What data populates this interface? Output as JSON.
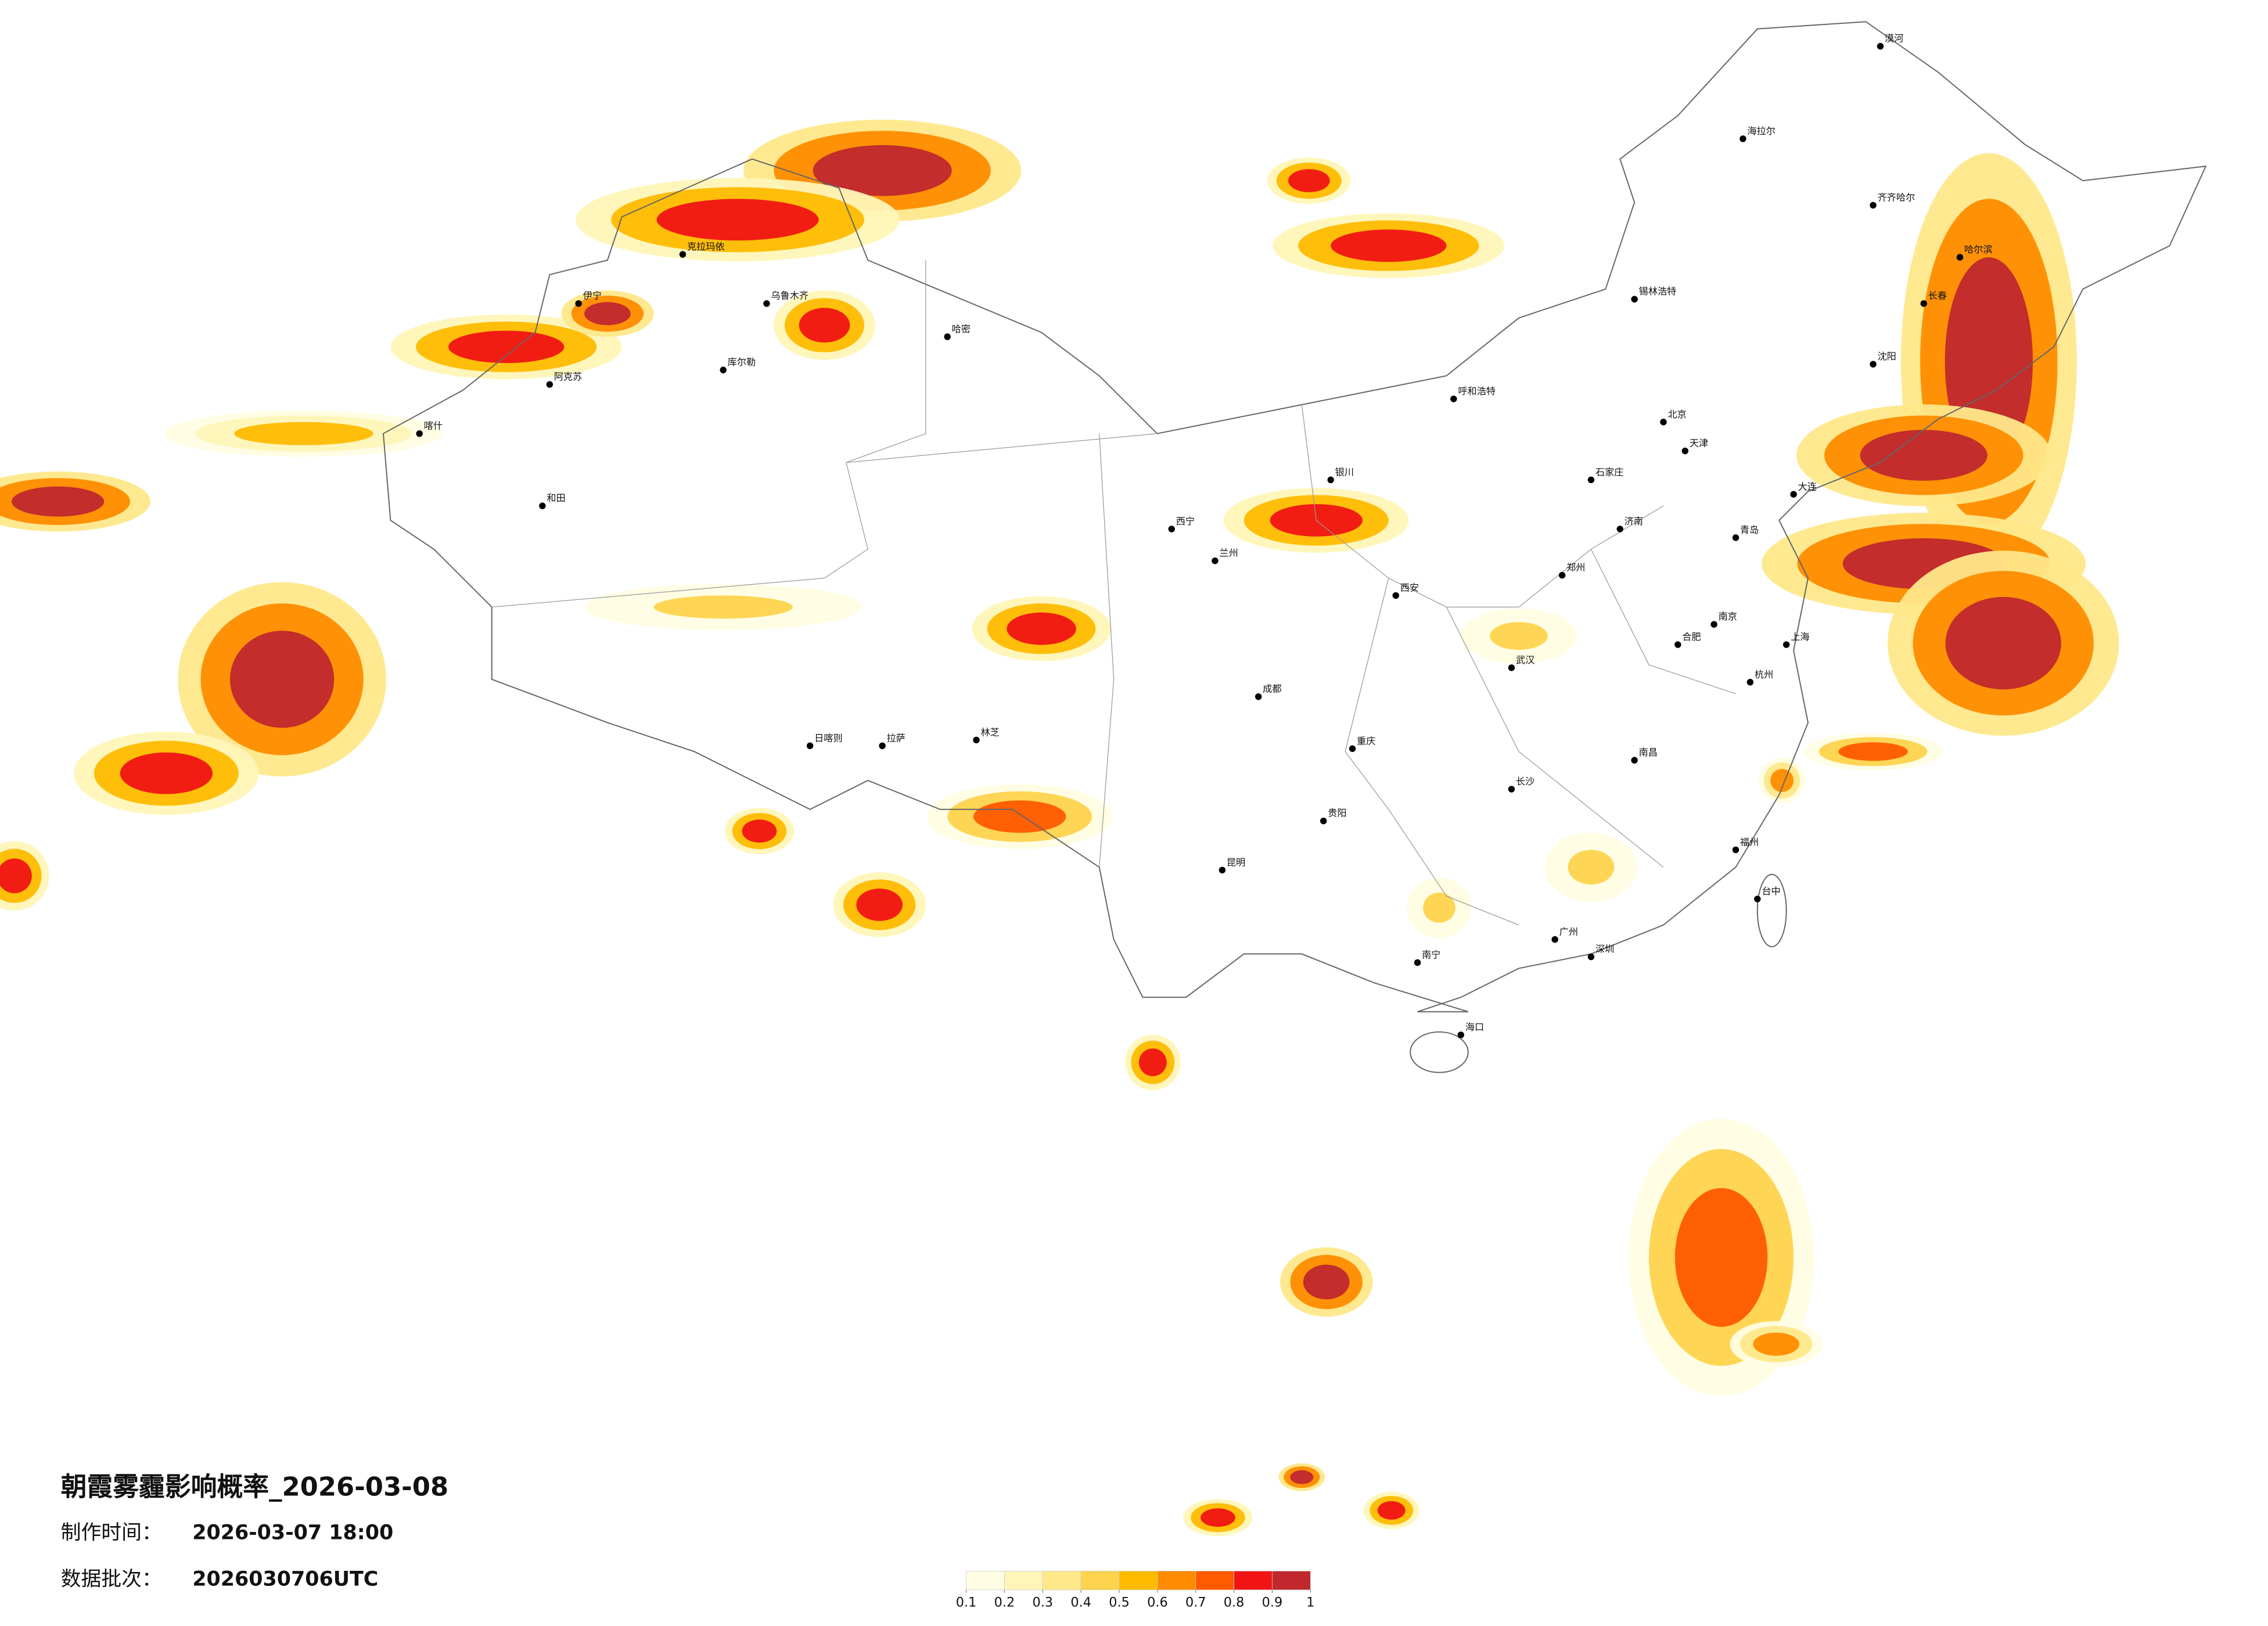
{
  "header": {
    "title": "朝霞雾霾影响概率_2026-03-08"
  },
  "info": [
    {
      "label": "制作时间：",
      "value": "2026-03-07 18:00"
    },
    {
      "label": "数据批次：",
      "value": "2026030706UTC"
    }
  ],
  "colorbar": {
    "ticks": [
      0.1,
      0.2,
      0.3,
      0.4,
      0.5,
      0.6,
      0.7,
      0.8,
      0.9,
      1
    ],
    "colors": [
      "#fffde3",
      "#fff5b8",
      "#ffe88a",
      "#ffd34d",
      "#ffbb00",
      "#ff8c00",
      "#ff5a00",
      "#f01414",
      "#c0282d"
    ]
  },
  "cities": [
    "漠河",
    "海拉尔",
    "齐齐哈尔",
    "哈尔滨",
    "长春",
    "沈阳",
    "大连",
    "锡林浩特",
    "呼和浩特",
    "北京",
    "天津",
    "石家庄",
    "济南",
    "青岛",
    "郑州",
    "西安",
    "银川",
    "兰州",
    "西宁",
    "哈密",
    "乌鲁木齐",
    "克拉玛依",
    "伊宁",
    "库尔勒",
    "阿克苏",
    "喀什",
    "和田",
    "拉萨",
    "日喀则",
    "林芝",
    "成都",
    "重庆",
    "贵阳",
    "昆明",
    "南宁",
    "广州",
    "深圳",
    "海口",
    "长沙",
    "武汉",
    "南昌",
    "合肥",
    "南京",
    "上海",
    "杭州",
    "福州",
    "台中"
  ]
}
